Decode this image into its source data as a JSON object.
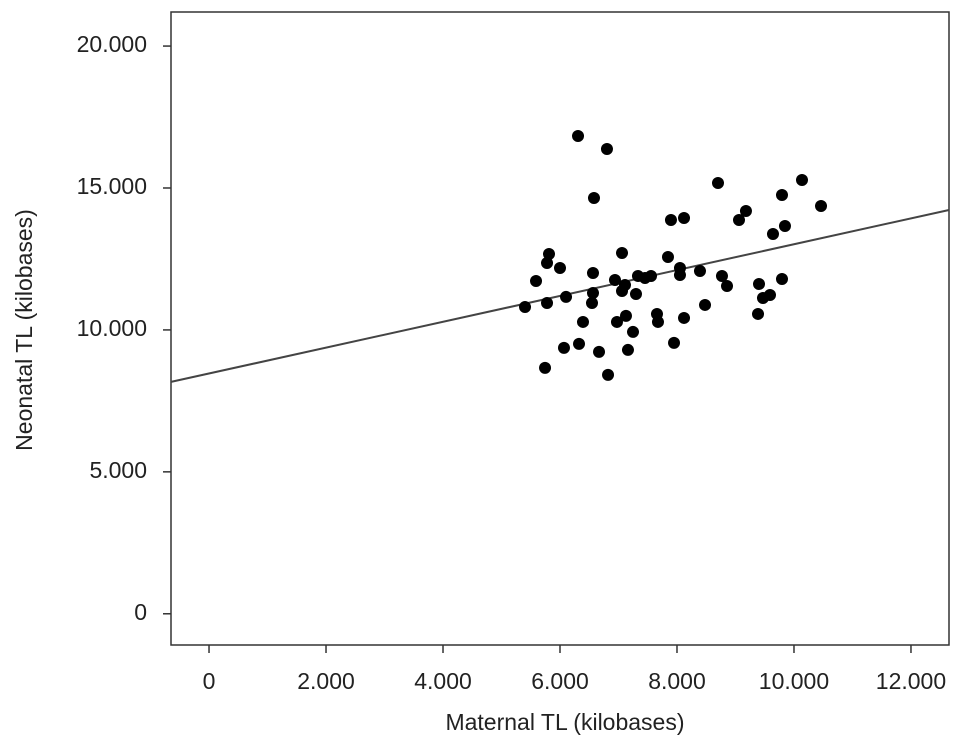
{
  "chart_data": {
    "type": "scatter",
    "x_label": "Maternal TL (kilobases)",
    "y_label": "Neonatal TL (kilobases)",
    "color": "#000000",
    "x": [
      6308,
      6803,
      6581,
      8701,
      10137,
      10462,
      9795,
      9179,
      9060,
      7897,
      8120,
      9846,
      9641,
      5812,
      5778,
      5590,
      6000,
      6564,
      7060,
      7846,
      8051,
      8051,
      8393,
      8769,
      8855,
      9795,
      9402,
      6940,
      7111,
      7333,
      7556,
      7453,
      7299,
      6564,
      6547,
      6103,
      7060,
      9590,
      9470,
      8479,
      5402,
      5778,
      6393,
      6974,
      7128,
      7658,
      7675,
      7248,
      8120,
      9385,
      6068,
      6325,
      7162,
      7949,
      6667,
      5744,
      6821
    ],
    "y": [
      16830,
      16373,
      14647,
      15176,
      15281,
      14366,
      14753,
      14190,
      13873,
      13873,
      13943,
      13661,
      13380,
      12676,
      12359,
      11725,
      12183,
      12007,
      12711,
      12570,
      12183,
      11936,
      12077,
      11901,
      11549,
      11795,
      11619,
      11760,
      11584,
      11901,
      11901,
      11831,
      11267,
      11302,
      10950,
      11162,
      11373,
      11232,
      11126,
      10880,
      10809,
      10950,
      10281,
      10281,
      10493,
      10563,
      10281,
      9929,
      10422,
      10563,
      9366,
      9507,
      9295,
      9542,
      9225,
      8662,
      8415
    ],
    "regression_line": {
      "x": [
        -650,
        12650
      ],
      "y": [
        8169,
        14225
      ],
      "color": "#444444"
    },
    "xlim": [
      -650,
      12650
    ],
    "ylim": [
      -1100,
      21200
    ],
    "xticks": [
      0,
      {
        "value": 2000,
        "label": "2.000"
      },
      {
        "value": 4000,
        "label": "4.000"
      },
      {
        "value": 6000,
        "label": "6.000"
      },
      {
        "value": 8000,
        "label": "8.000"
      },
      {
        "value": 10000,
        "label": "10.000"
      },
      {
        "value": 12000,
        "label": "12.000"
      }
    ],
    "yticks": [
      0,
      {
        "value": 5000,
        "label": "5.000"
      },
      {
        "value": 10000,
        "label": "10.000"
      },
      {
        "value": 15000,
        "label": "15.000"
      },
      {
        "value": 20000,
        "label": "20.000"
      }
    ]
  }
}
